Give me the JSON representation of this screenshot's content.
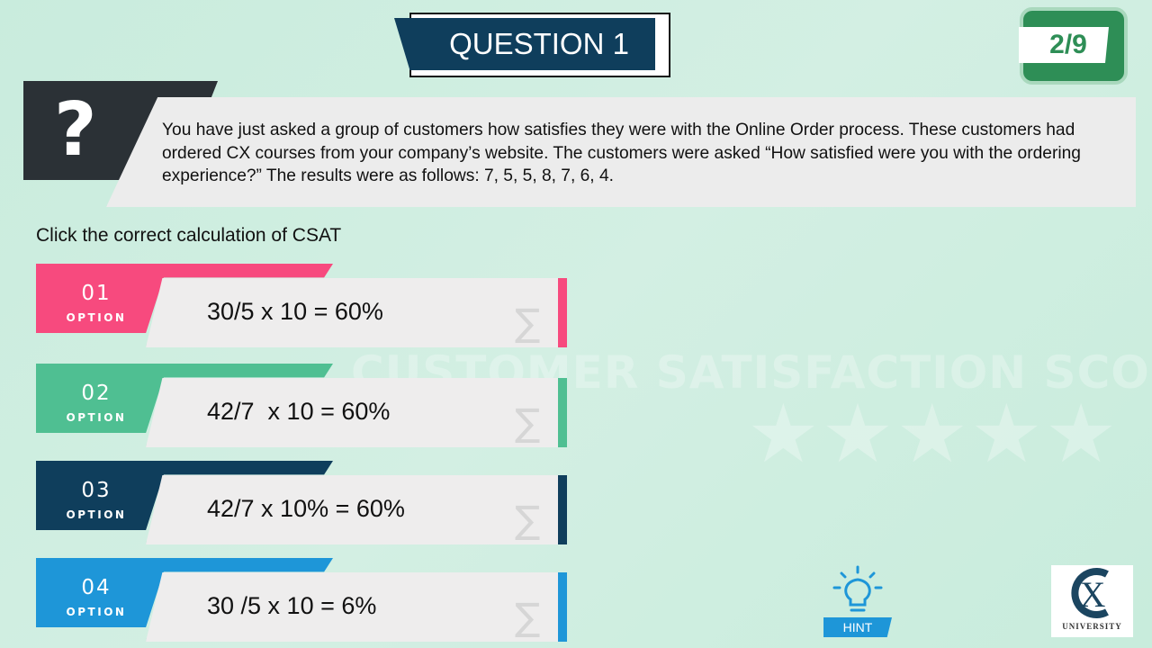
{
  "watermark": {
    "text": "CUSTOMER SATISFACTION SCORES",
    "stars": "★★★★★"
  },
  "header": {
    "title": "QUESTION 1",
    "counter": "2/9"
  },
  "question": {
    "icon": "question-mark-icon",
    "mark": "?",
    "text": "You have just asked a group of customers how satisfies they were with the Online Order process.  These customers had ordered CX courses from your company’s website.  The customers were asked “How satisfied were you with the ordering experience?” The results were as follows: 7, 5, 5, 8, 7, 6, 4."
  },
  "instruction": "Click the correct calculation of  CSAT",
  "options": [
    {
      "number": "01",
      "label": "OPTION",
      "formula": "30/5 x 10 = 60%",
      "color": "#f74a7e",
      "icon": "sigma-icon",
      "sigma": "∑"
    },
    {
      "number": "02",
      "label": "OPTION",
      "formula": "42/7  x 10 = 60%",
      "color": "#4fbf92",
      "icon": "sigma-icon",
      "sigma": "∑"
    },
    {
      "number": "03",
      "label": "OPTION",
      "formula": "42/7 x 10% = 60%",
      "color": "#0f3e5c",
      "icon": "sigma-icon",
      "sigma": "∑"
    },
    {
      "number": "04",
      "label": "OPTION",
      "formula": "30 /5 x 10 = 6%",
      "color": "#1e96d8",
      "icon": "sigma-icon",
      "sigma": "∑"
    }
  ],
  "hint": {
    "label": "HINT",
    "icon": "lightbulb-icon",
    "color": "#1e96d8"
  },
  "logo": {
    "text": "UNIVERSITY",
    "mark": "CX"
  }
}
